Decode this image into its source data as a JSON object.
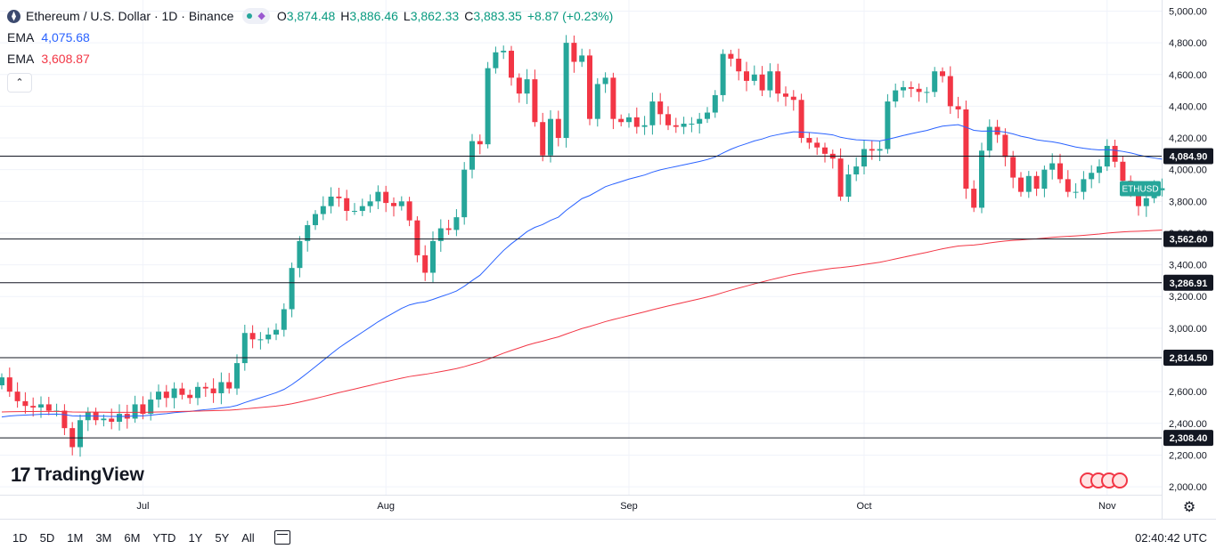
{
  "header": {
    "title": "Ethereum / U.S. Dollar · 1D · Binance",
    "ohlc": {
      "o_label": "O",
      "o": "3,874.48",
      "h_label": "H",
      "h": "3,886.46",
      "l_label": "L",
      "l": "3,862.33",
      "c_label": "C",
      "c": "3,883.35",
      "change": "+8.87 (+0.23%)"
    },
    "ema1_label": "EMA",
    "ema1_value": "4,075.68",
    "ema2_label": "EMA",
    "ema2_value": "3,608.87",
    "collapse_icon": "chevron-up-icon"
  },
  "logo_text": "TradingView",
  "bottom_bar": {
    "ranges": [
      "1D",
      "5D",
      "1M",
      "3M",
      "6M",
      "YTD",
      "1Y",
      "5Y",
      "All"
    ],
    "time": "02:40:42 UTC"
  },
  "colors": {
    "up": "#26a69a",
    "down": "#f23645",
    "ema_fast": "#2962ff",
    "ema_slow": "#f23645",
    "grid": "#f0f3fa"
  },
  "chart_data": {
    "type": "candlestick",
    "symbol_label": "ETHUSD",
    "last_price": 3883.35,
    "ylim": [
      1950,
      5070
    ],
    "y_ticks": [
      2000,
      2200,
      2400,
      2600,
      2800,
      3000,
      3200,
      3400,
      3600,
      3800,
      4000,
      4200,
      4400,
      4600,
      4800,
      5000
    ],
    "y_tick_labels": [
      "2,000.00",
      "2,200.00",
      "2,400.00",
      "2,600.00",
      "2,800.00",
      "3,000.00",
      "3,200.00",
      "3,400.00",
      "3,600.00",
      "3,800.00",
      "4,000.00",
      "4,200.00",
      "4,400.00",
      "4,600.00",
      "4,800.00",
      "5,000.00"
    ],
    "x_ticks": [
      {
        "label": "Jul",
        "date": "Jul 1"
      },
      {
        "label": "Aug",
        "date": "Aug 1"
      },
      {
        "label": "Sep",
        "date": "Sep 1"
      },
      {
        "label": "Oct",
        "date": "Oct 1"
      },
      {
        "label": "Nov",
        "date": "Nov 1"
      }
    ],
    "first_date": "Jun 13",
    "horizontal_levels": [
      {
        "value": 4084.9,
        "label": "4,084.90"
      },
      {
        "value": 3562.6,
        "label": "3,562.60"
      },
      {
        "value": 3286.91,
        "label": "3,286.91"
      },
      {
        "value": 2814.5,
        "label": "2,814.50"
      },
      {
        "value": 2308.4,
        "label": "2,308.40"
      }
    ],
    "closes": [
      2690,
      2600,
      2540,
      2510,
      2500,
      2520,
      2480,
      2480,
      2370,
      2250,
      2420,
      2470,
      2420,
      2430,
      2410,
      2460,
      2430,
      2520,
      2460,
      2550,
      2600,
      2560,
      2620,
      2580,
      2560,
      2630,
      2620,
      2590,
      2660,
      2620,
      2780,
      2970,
      2930,
      2930,
      2960,
      2990,
      3120,
      3380,
      3550,
      3650,
      3720,
      3770,
      3830,
      3820,
      3740,
      3740,
      3770,
      3800,
      3860,
      3790,
      3770,
      3800,
      3680,
      3460,
      3350,
      3550,
      3630,
      3620,
      3700,
      4000,
      4180,
      4160,
      4640,
      4740,
      4750,
      4580,
      4480,
      4570,
      4300,
      4090,
      4320,
      4200,
      4800,
      4680,
      4720,
      4320,
      4540,
      4580,
      4320,
      4300,
      4330,
      4270,
      4280,
      4430,
      4350,
      4280,
      4270,
      4290,
      4290,
      4320,
      4360,
      4470,
      4730,
      4700,
      4620,
      4560,
      4600,
      4500,
      4620,
      4480,
      4460,
      4440,
      4200,
      4170,
      4140,
      4100,
      4070,
      3830,
      3970,
      4020,
      4130,
      4120,
      4130,
      4430,
      4500,
      4520,
      4510,
      4490,
      4490,
      4620,
      4590,
      4400,
      4380,
      3880,
      3760,
      4120,
      4270,
      4220,
      4080,
      3950,
      3860,
      3960,
      3880,
      4000,
      4040,
      3940,
      3860,
      3860,
      3940,
      3980,
      4020,
      4150,
      4050,
      3930,
      3880,
      3770,
      3820,
      3870,
      3883
    ]
  }
}
